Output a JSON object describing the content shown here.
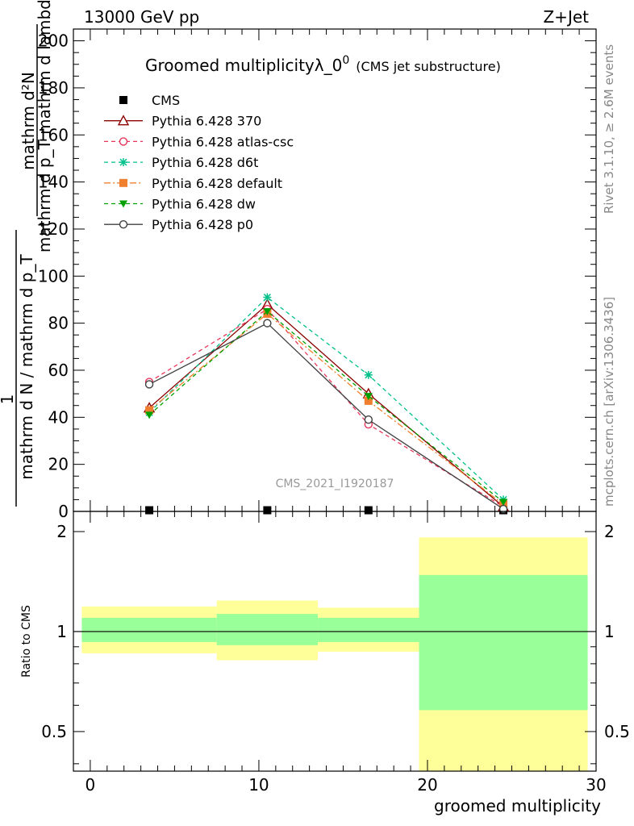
{
  "header": {
    "left": "13000 GeV pp",
    "right": "Z+Jet"
  },
  "side_labels": {
    "rivet": "Rivet 3.1.10, ≥ 2.6M events",
    "mcplots": "mcplots.cern.ch [arXiv:1306.3436]"
  },
  "main_plot": {
    "title": "Groomed multiplicityλ_0",
    "title_sup": "0",
    "title_suffix": "(CMS jet substructure)",
    "ylabel_numerator": "mathrm d²N",
    "ylabel_denominator": "mathrm d p_T mathrm d lambda",
    "ylabel_prefix_num": "1",
    "ylabel_prefix_den": "mathrm d N / mathrm d p_T",
    "watermark": "CMS_2021_I1920187",
    "yticks": [
      "0",
      "20",
      "40",
      "60",
      "80",
      "100",
      "120",
      "140",
      "160",
      "180",
      "200"
    ]
  },
  "ratio_plot": {
    "ylabel": "Ratio to CMS",
    "yticks": [
      "0.5",
      "1",
      "2"
    ],
    "xlabel": "groomed multiplicity",
    "xticks": [
      "0",
      "10",
      "20",
      "30"
    ]
  },
  "chart_data": {
    "type": "line",
    "x_axis": {
      "label": "groomed multiplicity",
      "range": [
        -1,
        30
      ]
    },
    "y_axis": {
      "range": [
        0,
        205
      ]
    },
    "ratio_y_range": [
      0.38,
      2.3
    ],
    "ratio_y_scale": "log",
    "series": [
      {
        "name": "CMS",
        "color": "#000000",
        "marker": "square-filled",
        "line": "none",
        "x": [
          3.5,
          10.5,
          16.5,
          24.5
        ],
        "y": [
          0.5,
          0.5,
          0.5,
          0.5
        ]
      },
      {
        "name": "Pythia 6.428 370",
        "color": "#8b0000",
        "marker": "triangle-open",
        "line": "solid",
        "x": [
          3.5,
          10.5,
          16.5,
          24.5
        ],
        "y": [
          44,
          88,
          50,
          2
        ]
      },
      {
        "name": "Pythia 6.428 atlas-csc",
        "color": "#e8365a",
        "marker": "circle-open",
        "line": "dashed",
        "x": [
          3.5,
          10.5,
          16.5,
          24.5
        ],
        "y": [
          55,
          86,
          37,
          2
        ]
      },
      {
        "name": "Pythia 6.428 d6t",
        "color": "#00c08a",
        "marker": "star",
        "line": "dashed",
        "x": [
          3.5,
          10.5,
          16.5,
          24.5
        ],
        "y": [
          42,
          91,
          58,
          5
        ]
      },
      {
        "name": "Pythia 6.428 default",
        "color": "#f08030",
        "marker": "square-filled",
        "line": "dashdot",
        "x": [
          3.5,
          10.5,
          16.5,
          24.5
        ],
        "y": [
          43,
          84,
          47,
          3
        ]
      },
      {
        "name": "Pythia 6.428 dw",
        "color": "#00a000",
        "marker": "triangle-down-filled",
        "line": "dashed",
        "x": [
          3.5,
          10.5,
          16.5,
          24.5
        ],
        "y": [
          41,
          85,
          49,
          4
        ]
      },
      {
        "name": "Pythia 6.428 p0",
        "color": "#404040",
        "marker": "circle-open",
        "line": "solid",
        "x": [
          3.5,
          10.5,
          16.5,
          24.5
        ],
        "y": [
          54,
          80,
          39,
          1
        ]
      }
    ],
    "ratio_bands": [
      {
        "x0": -0.5,
        "x1": 7.5,
        "inner": [
          0.93,
          1.1
        ],
        "outer": [
          0.86,
          1.19
        ]
      },
      {
        "x0": 7.5,
        "x1": 13.5,
        "inner": [
          0.91,
          1.13
        ],
        "outer": [
          0.82,
          1.24
        ]
      },
      {
        "x0": 13.5,
        "x1": 19.5,
        "inner": [
          0.93,
          1.1
        ],
        "outer": [
          0.87,
          1.18
        ]
      },
      {
        "x0": 19.5,
        "x1": 29.5,
        "inner": [
          0.58,
          1.48
        ],
        "outer": [
          0.38,
          1.92
        ]
      }
    ],
    "ratio_band_colors": {
      "inner": "#99ff99",
      "outer": "#ffff99"
    }
  }
}
